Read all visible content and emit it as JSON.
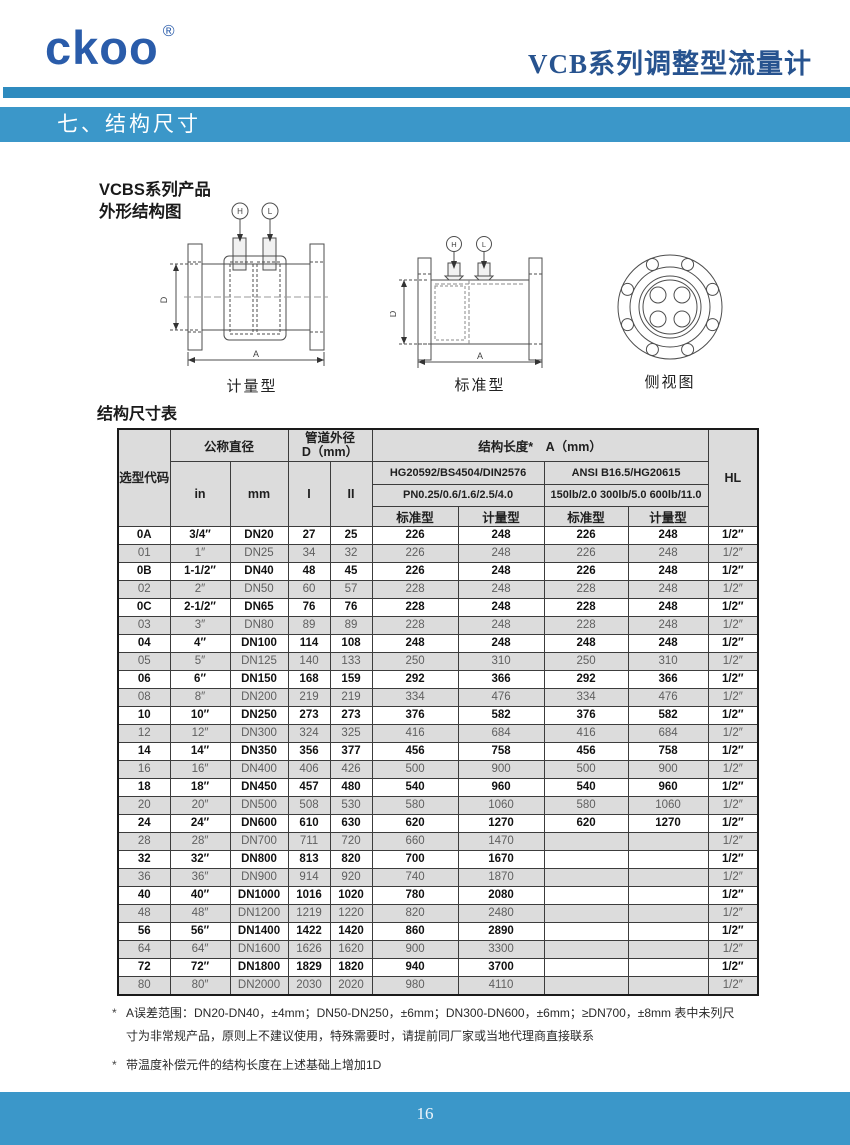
{
  "header": {
    "logo": "ckoo",
    "logo_reg": "®",
    "doc_title": "VCB系列调整型流量计",
    "section_title": "七、结构尺寸"
  },
  "figures": {
    "intro_line1": "VCBS系列产品",
    "intro_line2": "外形结构图",
    "tap_high": "H",
    "tap_low": "L",
    "dim_d": "D",
    "dim_a": "A",
    "captions": [
      "计量型",
      "标准型",
      "侧视图"
    ]
  },
  "table": {
    "title": "结构尺寸表",
    "header": {
      "code": "选型代码",
      "nominal_diameter": "公称直径",
      "unit_in": "in",
      "unit_mm": "mm",
      "pipe_od_line1": "管道外径",
      "pipe_od_line2": "D（mm）",
      "col_i": "I",
      "col_ii": "II",
      "length": "结构长度*　A（mm）",
      "hg_std": "HG20592/BS4504/DIN2576",
      "hg_pn": "PN0.25/0.6/1.6/2.5/4.0",
      "ansi_std": "ANSI B16.5/HG20615",
      "ansi_pn": "150lb/2.0 300lb/5.0 600lb/11.0",
      "standard_type": "标准型",
      "metering_type": "计量型",
      "hl": "HL"
    },
    "rows": [
      [
        "0A",
        "3/4″",
        "DN20",
        "27",
        "25",
        "226",
        "248",
        "226",
        "248",
        "1/2″"
      ],
      [
        "01",
        "1″",
        "DN25",
        "34",
        "32",
        "226",
        "248",
        "226",
        "248",
        "1/2″"
      ],
      [
        "0B",
        "1-1/2″",
        "DN40",
        "48",
        "45",
        "226",
        "248",
        "226",
        "248",
        "1/2″"
      ],
      [
        "02",
        "2″",
        "DN50",
        "60",
        "57",
        "228",
        "248",
        "228",
        "248",
        "1/2″"
      ],
      [
        "0C",
        "2-1/2″",
        "DN65",
        "76",
        "76",
        "228",
        "248",
        "228",
        "248",
        "1/2″"
      ],
      [
        "03",
        "3″",
        "DN80",
        "89",
        "89",
        "228",
        "248",
        "228",
        "248",
        "1/2″"
      ],
      [
        "04",
        "4″",
        "DN100",
        "114",
        "108",
        "248",
        "248",
        "248",
        "248",
        "1/2″"
      ],
      [
        "05",
        "5″",
        "DN125",
        "140",
        "133",
        "250",
        "310",
        "250",
        "310",
        "1/2″"
      ],
      [
        "06",
        "6″",
        "DN150",
        "168",
        "159",
        "292",
        "366",
        "292",
        "366",
        "1/2″"
      ],
      [
        "08",
        "8″",
        "DN200",
        "219",
        "219",
        "334",
        "476",
        "334",
        "476",
        "1/2″"
      ],
      [
        "10",
        "10″",
        "DN250",
        "273",
        "273",
        "376",
        "582",
        "376",
        "582",
        "1/2″"
      ],
      [
        "12",
        "12″",
        "DN300",
        "324",
        "325",
        "416",
        "684",
        "416",
        "684",
        "1/2″"
      ],
      [
        "14",
        "14″",
        "DN350",
        "356",
        "377",
        "456",
        "758",
        "456",
        "758",
        "1/2″"
      ],
      [
        "16",
        "16″",
        "DN400",
        "406",
        "426",
        "500",
        "900",
        "500",
        "900",
        "1/2″"
      ],
      [
        "18",
        "18″",
        "DN450",
        "457",
        "480",
        "540",
        "960",
        "540",
        "960",
        "1/2″"
      ],
      [
        "20",
        "20″",
        "DN500",
        "508",
        "530",
        "580",
        "1060",
        "580",
        "1060",
        "1/2″"
      ],
      [
        "24",
        "24″",
        "DN600",
        "610",
        "630",
        "620",
        "1270",
        "620",
        "1270",
        "1/2″"
      ],
      [
        "28",
        "28″",
        "DN700",
        "711",
        "720",
        "660",
        "1470",
        "",
        "",
        "1/2″"
      ],
      [
        "32",
        "32″",
        "DN800",
        "813",
        "820",
        "700",
        "1670",
        "",
        "",
        "1/2″"
      ],
      [
        "36",
        "36″",
        "DN900",
        "914",
        "920",
        "740",
        "1870",
        "",
        "",
        "1/2″"
      ],
      [
        "40",
        "40″",
        "DN1000",
        "1016",
        "1020",
        "780",
        "2080",
        "",
        "",
        "1/2″"
      ],
      [
        "48",
        "48″",
        "DN1200",
        "1219",
        "1220",
        "820",
        "2480",
        "",
        "",
        "1/2″"
      ],
      [
        "56",
        "56″",
        "DN1400",
        "1422",
        "1420",
        "860",
        "2890",
        "",
        "",
        "1/2″"
      ],
      [
        "64",
        "64″",
        "DN1600",
        "1626",
        "1620",
        "900",
        "3300",
        "",
        "",
        "1/2″"
      ],
      [
        "72",
        "72″",
        "DN1800",
        "1829",
        "1820",
        "940",
        "3700",
        "",
        "",
        "1/2″"
      ],
      [
        "80",
        "80″",
        "DN2000",
        "2030",
        "2020",
        "980",
        "4110",
        "",
        "",
        "1/2″"
      ]
    ]
  },
  "notes": [
    {
      "bullet": "*",
      "text": "A误差范围：DN20-DN40，±4mm；DN50-DN250，±6mm；DN300-DN600，±6mm；≥DN700，±8mm 表中未列尺寸为非常规产品，原则上不建议使用，特殊需要时，请提前同厂家或当地代理商直接联系"
    },
    {
      "bullet": "*",
      "text": "带温度补偿元件的结构长度在上述基础上增加1D"
    }
  ],
  "footer": {
    "page_number": "16"
  },
  "colors": {
    "accent_blue": "#3b97c9",
    "thin_bar_blue": "#2e8bbf",
    "logo_blue": "#2a5caa",
    "title_blue": "#27538f",
    "row_gray": "#dcdcdc"
  }
}
